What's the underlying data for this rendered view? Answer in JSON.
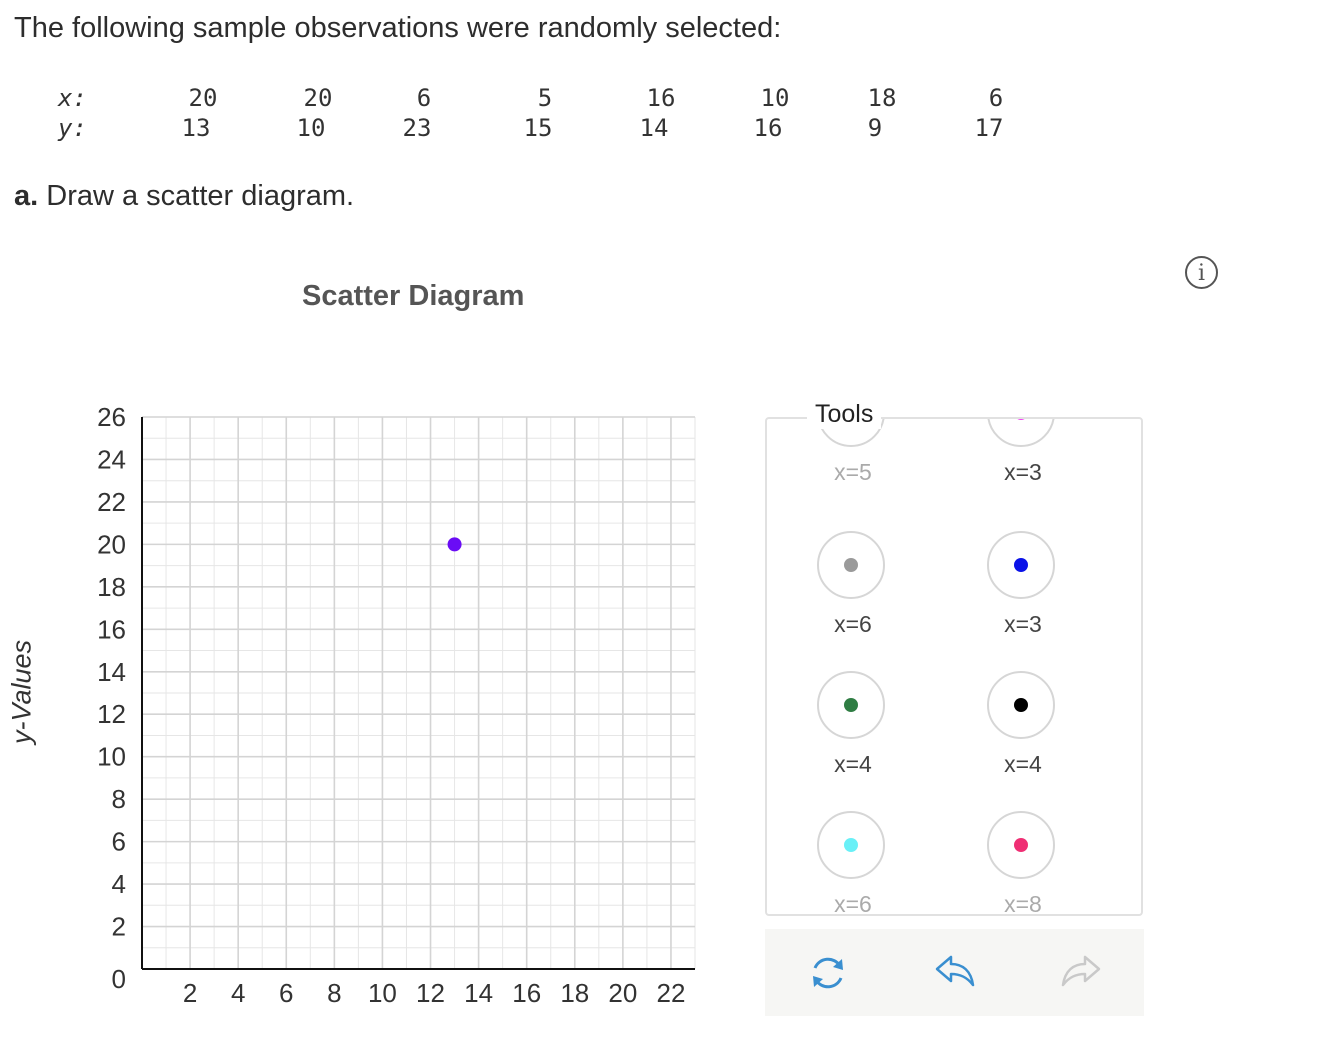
{
  "question": {
    "intro": "The following sample observations were randomly selected:",
    "x_label": "x:",
    "y_label": "y:",
    "x_values": [
      "20",
      "20",
      "6",
      "5",
      "16",
      "10",
      "18",
      "6"
    ],
    "y_values": [
      "13",
      "10",
      "23",
      "15",
      "14",
      "16",
      "9",
      "17"
    ],
    "part_a_letter": "a.",
    "part_a_text": " Draw a scatter diagram."
  },
  "chart_data": {
    "type": "scatter",
    "title": "Scatter Diagram",
    "ylabel": "y-Values",
    "xlabel": "",
    "xlim": [
      0,
      23
    ],
    "ylim": [
      0,
      26
    ],
    "x_ticks": [
      2,
      4,
      6,
      8,
      10,
      12,
      14,
      16,
      18,
      20,
      22
    ],
    "y_ticks": [
      0,
      2,
      4,
      6,
      8,
      10,
      12,
      14,
      16,
      18,
      20,
      22,
      24,
      26
    ],
    "grid": true,
    "points": [
      {
        "x": 13,
        "y": 20,
        "color": "#6a0cf5"
      }
    ]
  },
  "tools": {
    "legend": "Tools",
    "items": [
      {
        "name": "tool-violet",
        "color": "#b07fe8",
        "label": "x=5",
        "dim": true
      },
      {
        "name": "tool-magenta",
        "color": "#f03cf0",
        "label": "x=3",
        "dim": false
      },
      {
        "name": "tool-gray",
        "color": "#9a9a9a",
        "label": "x=6",
        "dim": false
      },
      {
        "name": "tool-blue",
        "color": "#0a12e8",
        "label": "x=3",
        "dim": false
      },
      {
        "name": "tool-green",
        "color": "#2f7d43",
        "label": "x=4",
        "dim": false
      },
      {
        "name": "tool-black",
        "color": "#000000",
        "label": "x=4",
        "dim": false
      },
      {
        "name": "tool-cyan",
        "color": "#69f0f7",
        "label": "x=6",
        "dim": true
      },
      {
        "name": "tool-pink",
        "color": "#ef2f74",
        "label": "x=8",
        "dim": true
      }
    ]
  },
  "actions": {
    "reset_icon": "refresh-icon",
    "undo_icon": "undo-icon",
    "redo_icon": "redo-icon",
    "accent": "#3a8fd0",
    "disabled": "#c9c9c9"
  },
  "info_glyph": "i"
}
